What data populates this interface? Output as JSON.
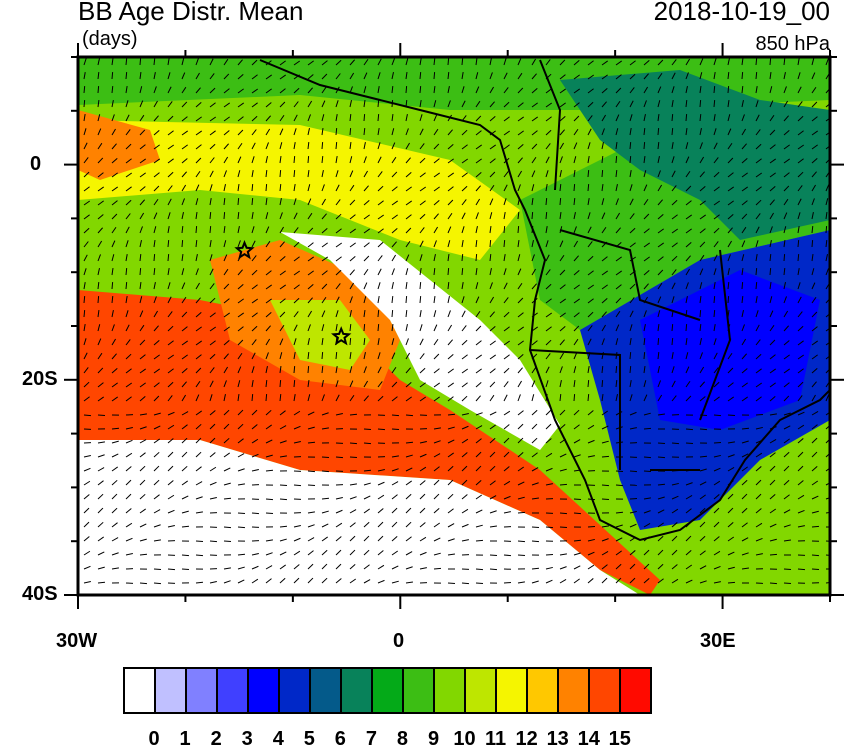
{
  "header": {
    "title": "BB Age Distr. Mean",
    "units": "(days)",
    "date": "2018-10-19_00",
    "level": "850 hPa"
  },
  "map": {
    "lon_range": [
      -30,
      40
    ],
    "lat_range": [
      -40,
      10
    ],
    "lat_labels": [
      "0",
      "20S",
      "40S"
    ],
    "lon_labels": [
      "30W",
      "0",
      "30E"
    ],
    "markers": [
      {
        "type": "star",
        "lon": -14.5,
        "lat": -8
      },
      {
        "type": "star",
        "lon": -5.5,
        "lat": -16
      }
    ]
  },
  "colorbar": {
    "labels": [
      "0",
      "1",
      "2",
      "3",
      "4",
      "5",
      "6",
      "7",
      "8",
      "9",
      "10",
      "11",
      "12",
      "13",
      "14",
      "15"
    ],
    "colors": [
      "#ffffff",
      "#c0c0ff",
      "#8080ff",
      "#4040ff",
      "#0000ff",
      "#0028c8",
      "#045a8a",
      "#08825a",
      "#04aa18",
      "#3cbe14",
      "#82d700",
      "#bee600",
      "#f5f500",
      "#ffc800",
      "#ff8200",
      "#ff4600",
      "#ff0a00"
    ]
  }
}
